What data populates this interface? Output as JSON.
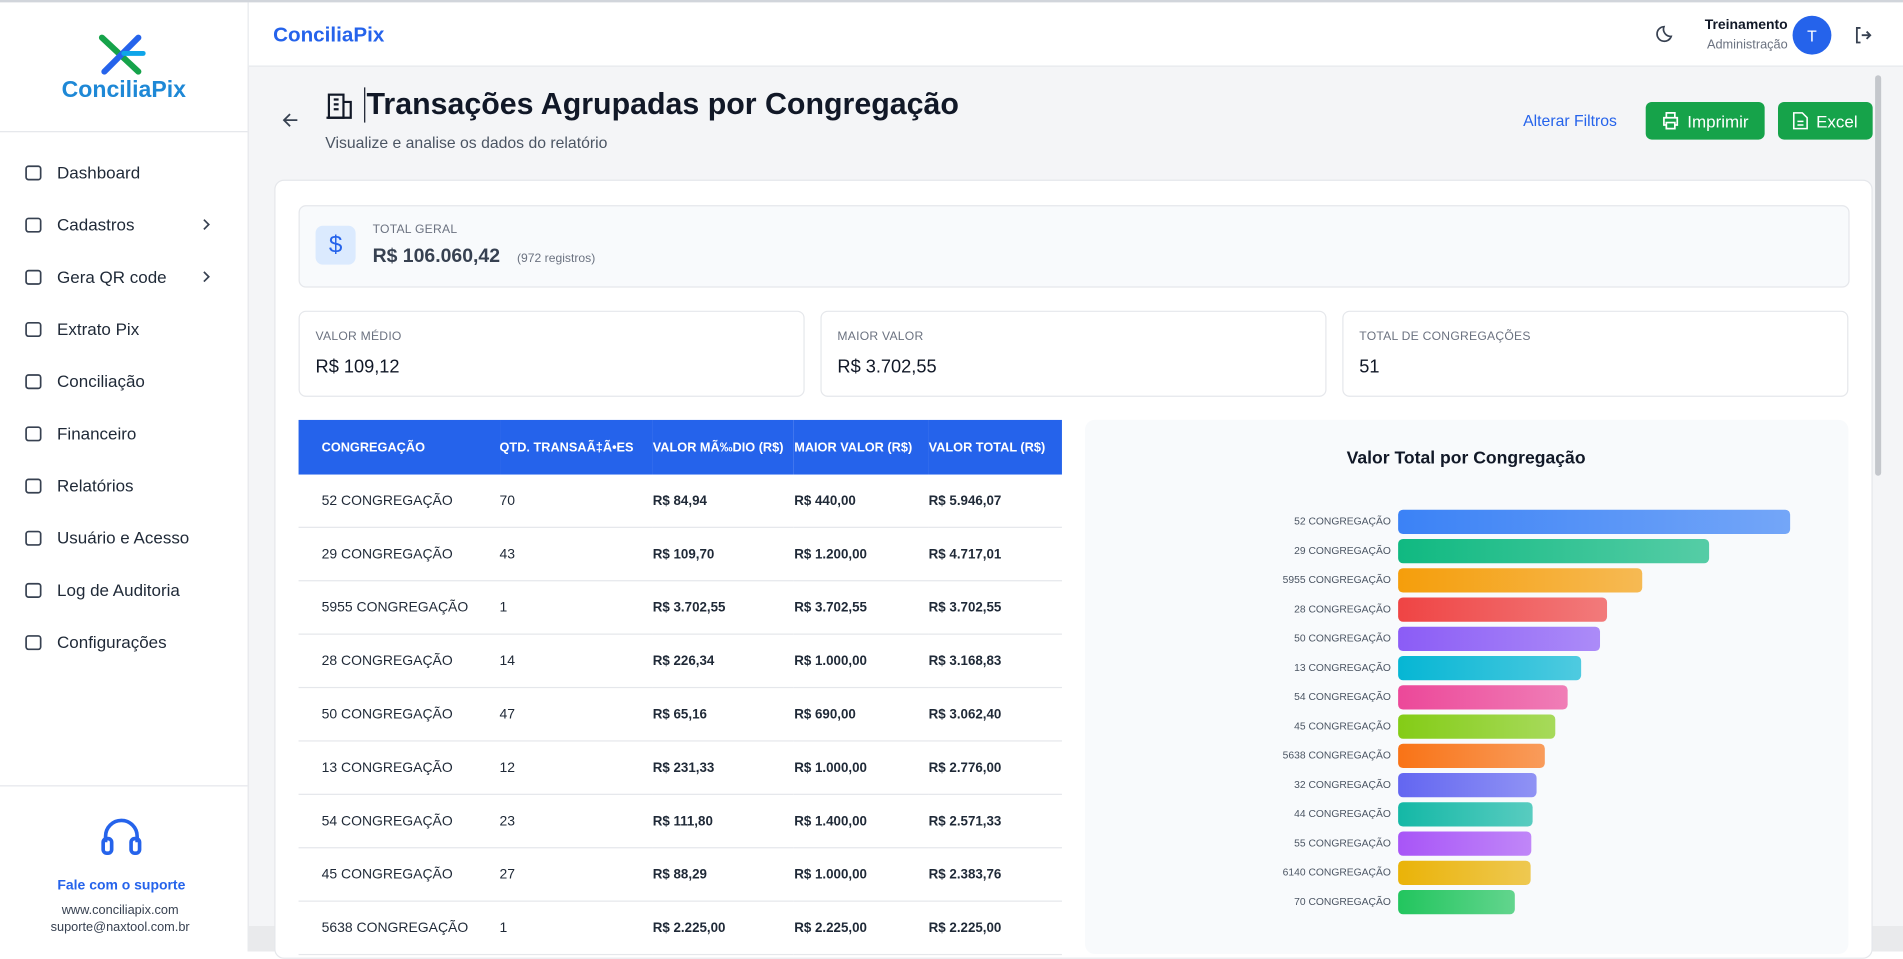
{
  "sidebar": {
    "brand": "ConciliaPix",
    "nav": [
      "Dashboard",
      "Cadastros",
      "Gera QR code",
      "Extrato Pix",
      "Conciliação",
      "Financeiro",
      "Relatórios",
      "Usuário e Acesso",
      "Log de Auditoria",
      "Configurações"
    ],
    "support": {
      "title": "Fale com o suporte",
      "site": "www.conciliapix.com",
      "email": "suporte@naxtool.com.br"
    }
  },
  "header": {
    "brand": "ConciliaPix",
    "user": "Treinamento",
    "role": "Administração",
    "avatar": "T"
  },
  "page": {
    "title": "Transações Agrupadas por Congregação",
    "subtitle": "Visualize e analise os dados do relatório",
    "filters": "Alterar Filtros",
    "print": "Imprimir",
    "excel": "Excel"
  },
  "summary": {
    "label": "TOTAL GERAL",
    "value": "R$ 106.060,42",
    "note": "(972 registros)"
  },
  "cards": [
    {
      "label": "VALOR MÉDIO",
      "value": "R$ 109,12"
    },
    {
      "label": "MAIOR VALOR",
      "value": "R$ 3.702,55"
    },
    {
      "label": "TOTAL DE CONGREGAÇÕES",
      "value": "51"
    }
  ],
  "table": {
    "columns": [
      "CONGREGAÇÃO",
      "QTD. TRANSAÃ‡Ã•ES",
      "VALOR MÃ‰DIO (R$)",
      "MAIOR VALOR (R$)",
      "VALOR TOTAL (R$)"
    ],
    "rows": [
      [
        "52 CONGREGAÇÃO",
        "70",
        "R$ 84,94",
        "R$ 440,00",
        "R$ 5.946,07"
      ],
      [
        "29 CONGREGAÇÃO",
        "43",
        "R$ 109,70",
        "R$ 1.200,00",
        "R$ 4.717,01"
      ],
      [
        "5955 CONGREGAÇÃO",
        "1",
        "R$ 3.702,55",
        "R$ 3.702,55",
        "R$ 3.702,55"
      ],
      [
        "28 CONGREGAÇÃO",
        "14",
        "R$ 226,34",
        "R$ 1.000,00",
        "R$ 3.168,83"
      ],
      [
        "50 CONGREGAÇÃO",
        "47",
        "R$ 65,16",
        "R$ 690,00",
        "R$ 3.062,40"
      ],
      [
        "13 CONGREGAÇÃO",
        "12",
        "R$ 231,33",
        "R$ 1.000,00",
        "R$ 2.776,00"
      ],
      [
        "54 CONGREGAÇÃO",
        "23",
        "R$ 111,80",
        "R$ 1.400,00",
        "R$ 2.571,33"
      ],
      [
        "45 CONGREGAÇÃO",
        "27",
        "R$ 88,29",
        "R$ 1.000,00",
        "R$ 2.383,76"
      ],
      [
        "5638 CONGREGAÇÃO",
        "1",
        "R$ 2.225,00",
        "R$ 2.225,00",
        "R$ 2.225,00"
      ]
    ]
  },
  "chart_data": {
    "type": "hbar",
    "title": "Valor Total por Congregação",
    "categories": [
      "52 CONGREGAÇÃO",
      "29 CONGREGAÇÃO",
      "5955 CONGREGAÇÃO",
      "28 CONGREGAÇÃO",
      "50 CONGREGAÇÃO",
      "13 CONGREGAÇÃO",
      "54 CONGREGAÇÃO",
      "45 CONGREGAÇÃO",
      "5638 CONGREGAÇÃO",
      "32 CONGREGAÇÃO",
      "44 CONGREGAÇÃO",
      "55 CONGREGAÇÃO",
      "6140 CONGREGAÇÃO",
      "70 CONGREGAÇÃO"
    ],
    "values": [
      5946.07,
      4717.01,
      3702.55,
      3168.83,
      3062.4,
      2776.0,
      2571.33,
      2383.76,
      2225.0,
      2100,
      2040,
      2020,
      2010,
      1770
    ],
    "colors": [
      "#3b82f6",
      "#10b981",
      "#f59e0b",
      "#ef4444",
      "#8b5cf6",
      "#06b6d4",
      "#ec4899",
      "#84cc16",
      "#f97316",
      "#6366f1",
      "#14b8a6",
      "#a855f7",
      "#eab308",
      "#22c55e"
    ]
  }
}
